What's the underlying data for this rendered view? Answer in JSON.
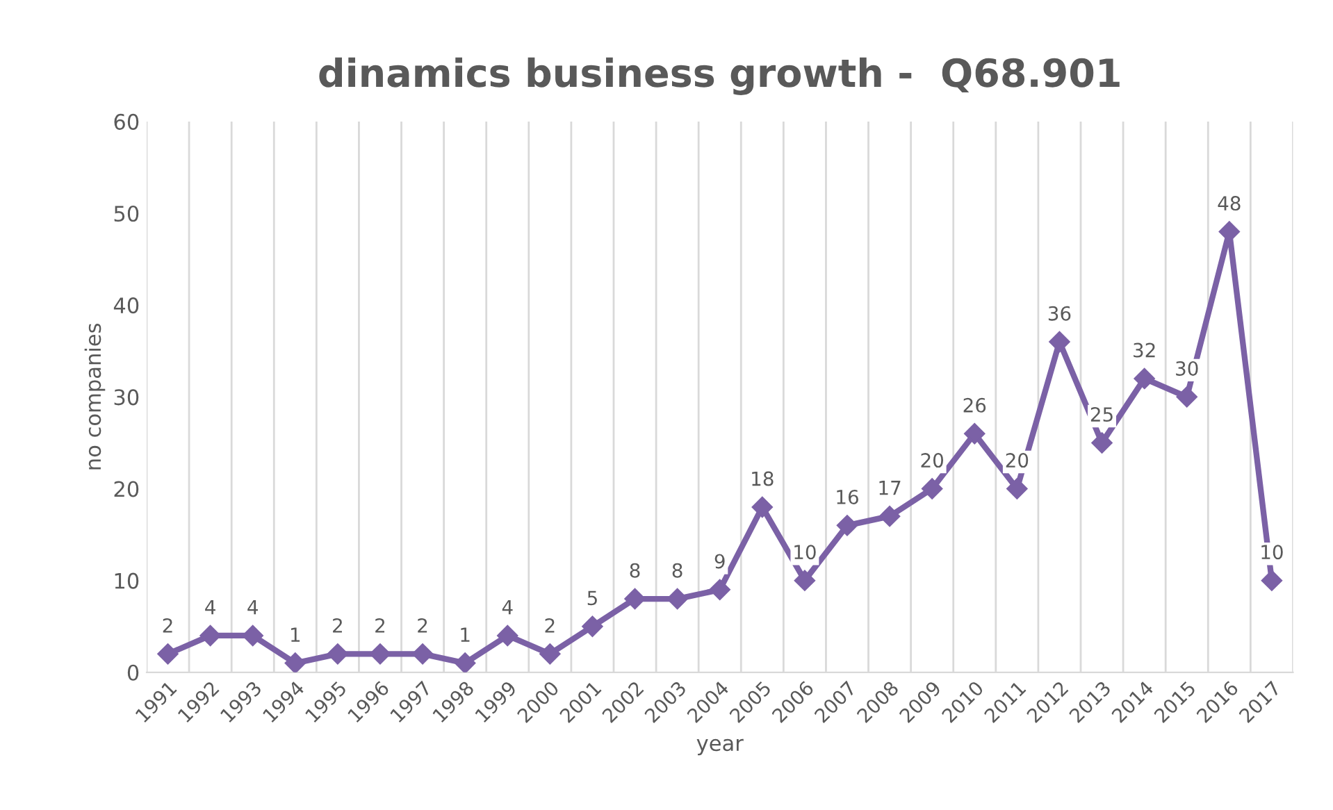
{
  "chart_data": {
    "type": "line",
    "title": "dinamics business growth -  Q68.901",
    "xlabel": "year",
    "ylabel": "no companies",
    "categories": [
      "1991",
      "1992",
      "1993",
      "1994",
      "1995",
      "1996",
      "1997",
      "1998",
      "1999",
      "2000",
      "2001",
      "2002",
      "2003",
      "2004",
      "2005",
      "2006",
      "2007",
      "2008",
      "2009",
      "2010",
      "2011",
      "2012",
      "2013",
      "2014",
      "2015",
      "2016",
      "2017"
    ],
    "series": [
      {
        "color": "#7b61a6",
        "values": [
          2,
          4,
          4,
          1,
          2,
          2,
          2,
          1,
          4,
          2,
          5,
          8,
          8,
          9,
          18,
          10,
          16,
          17,
          20,
          26,
          20,
          36,
          25,
          32,
          30,
          48,
          10
        ]
      }
    ],
    "ylim": [
      0,
      60
    ],
    "yticks": [
      0,
      10,
      20,
      30,
      40,
      50,
      60
    ],
    "grid": "x",
    "marker": "diamond",
    "line_style": "solid",
    "data_labels": true,
    "legend": false
  }
}
